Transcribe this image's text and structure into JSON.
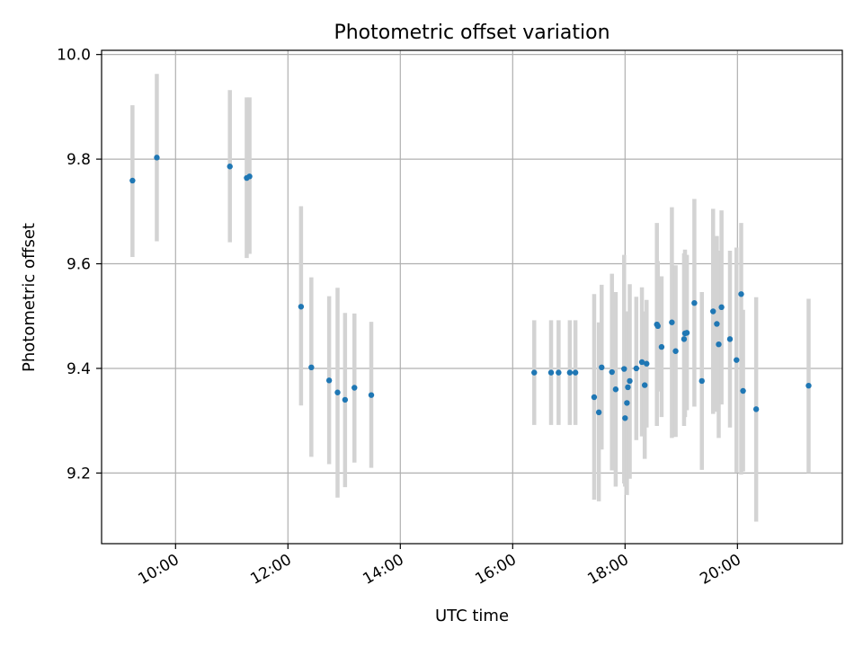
{
  "chart_data": {
    "type": "scatter",
    "title": "Photometric offset variation",
    "xlabel": "UTC time",
    "ylabel": "Photometric offset",
    "xlim": [
      "08:41",
      "21:52"
    ],
    "ylim": [
      9.065,
      10.008
    ],
    "grid": true,
    "x_ticks": [
      "10:00",
      "12:00",
      "14:00",
      "16:00",
      "18:00",
      "20:00"
    ],
    "y_ticks": [
      9.2,
      9.4,
      9.6,
      9.8,
      10.0
    ],
    "y_tick_labels": [
      "9.2",
      "9.4",
      "9.6",
      "9.8",
      "10.0"
    ],
    "colors": {
      "points": "#1f77b4",
      "errorbars": "#d3d3d3",
      "grid": "#b0b0b0"
    },
    "series": [
      {
        "x": [
          "09:14",
          "09:40",
          "10:58",
          "11:16",
          "11:19",
          "12:14",
          "12:25",
          "12:44",
          "12:53",
          "13:01",
          "13:11",
          "13:29",
          "16:23",
          "16:41",
          "16:49",
          "17:01",
          "17:07",
          "17:27",
          "17:32",
          "17:35",
          "17:46",
          "17:50",
          "17:59",
          "18:00",
          "18:02",
          "18:03",
          "18:05",
          "18:12",
          "18:18",
          "18:21",
          "18:23",
          "18:34",
          "18:35",
          "18:39",
          "18:50",
          "18:54",
          "19:03",
          "19:04",
          "19:06",
          "19:14",
          "19:22",
          "19:34",
          "19:38",
          "19:40",
          "19:43",
          "19:52",
          "19:59",
          "20:04",
          "20:06",
          "20:20",
          "21:16"
        ],
        "y": [
          9.759,
          9.803,
          9.786,
          9.764,
          9.767,
          9.518,
          9.402,
          9.377,
          9.354,
          9.34,
          9.363,
          9.349,
          9.392,
          9.392,
          9.392,
          9.392,
          9.392,
          9.345,
          9.316,
          9.402,
          9.393,
          9.36,
          9.399,
          9.305,
          9.334,
          9.364,
          9.376,
          9.4,
          9.412,
          9.368,
          9.409,
          9.484,
          9.481,
          9.441,
          9.488,
          9.433,
          9.456,
          9.467,
          9.468,
          9.525,
          9.376,
          9.509,
          9.485,
          9.446,
          9.517,
          9.456,
          9.416,
          9.542,
          9.357,
          9.322,
          9.367
        ],
        "yerr_low": [
          9.613,
          9.643,
          9.641,
          9.611,
          9.619,
          9.329,
          9.231,
          9.217,
          9.153,
          9.173,
          9.22,
          9.21,
          9.292,
          9.292,
          9.292,
          9.292,
          9.292,
          9.149,
          9.146,
          9.245,
          9.205,
          9.174,
          9.18,
          9.174,
          9.158,
          9.233,
          9.189,
          9.263,
          9.27,
          9.227,
          9.287,
          9.29,
          9.356,
          9.307,
          9.267,
          9.269,
          9.29,
          9.307,
          9.32,
          9.327,
          9.206,
          9.313,
          9.317,
          9.267,
          9.331,
          9.287,
          9.201,
          9.197,
          9.203,
          9.107,
          9.2
        ],
        "yerr_high": [
          9.903,
          9.963,
          9.932,
          9.918,
          9.918,
          9.71,
          9.574,
          9.538,
          9.554,
          9.506,
          9.505,
          9.489,
          9.492,
          9.492,
          9.492,
          9.492,
          9.492,
          9.542,
          9.488,
          9.56,
          9.581,
          9.546,
          9.617,
          9.438,
          9.509,
          9.495,
          9.561,
          9.537,
          9.555,
          9.509,
          9.531,
          9.678,
          9.605,
          9.576,
          9.708,
          9.597,
          9.62,
          9.627,
          9.617,
          9.724,
          9.546,
          9.705,
          9.653,
          9.625,
          9.702,
          9.625,
          9.631,
          9.678,
          9.512,
          9.536,
          9.533
        ]
      }
    ]
  }
}
